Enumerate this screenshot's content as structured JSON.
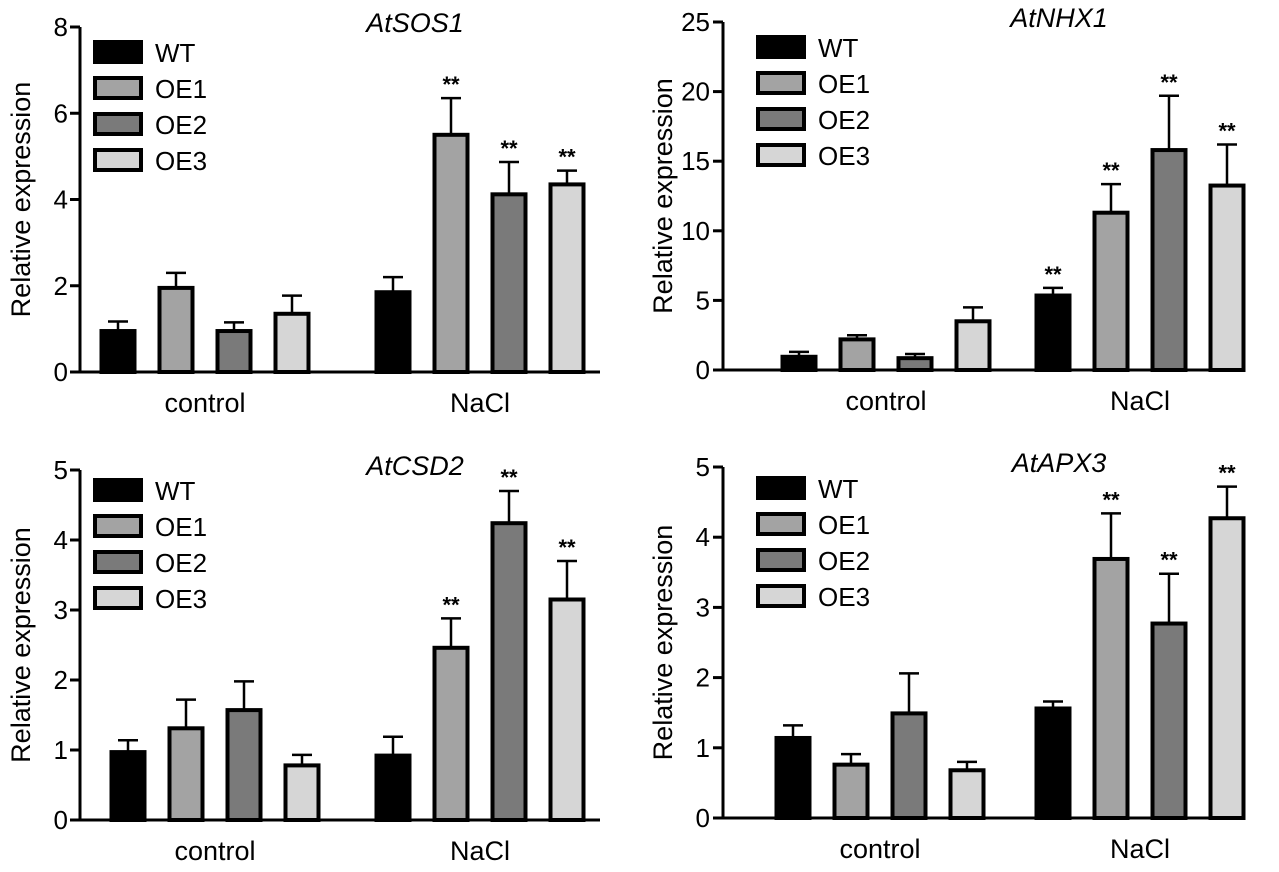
{
  "figure": {
    "groups": [
      "control",
      "NaCl"
    ],
    "legend": [
      "WT",
      "OE1",
      "OE2",
      "OE3"
    ],
    "colors": {
      "WT": "#000000",
      "OE1": "#a3a3a3",
      "OE2": "#7a7a7a",
      "OE3": "#d6d6d6",
      "axis": "#000000"
    }
  },
  "chart_data": [
    {
      "type": "bar",
      "title": "AtSOS1",
      "ylabel": "Relative expression",
      "xlabel": "",
      "categories": [
        "control",
        "NaCl"
      ],
      "ylim": [
        0,
        8
      ],
      "yticks": [
        "0",
        "2",
        "4",
        "6",
        "8"
      ],
      "legend_position": "top-left",
      "series": [
        {
          "name": "WT",
          "values": [
            0.95,
            1.85
          ],
          "errors": [
            0.22,
            0.35
          ],
          "sig": [
            "",
            ""
          ]
        },
        {
          "name": "OE1",
          "values": [
            1.95,
            5.5
          ],
          "errors": [
            0.35,
            0.85
          ],
          "sig": [
            "",
            "**"
          ]
        },
        {
          "name": "OE2",
          "values": [
            0.95,
            4.12
          ],
          "errors": [
            0.2,
            0.75
          ],
          "sig": [
            "",
            "**"
          ]
        },
        {
          "name": "OE3",
          "values": [
            1.35,
            4.35
          ],
          "errors": [
            0.42,
            0.32
          ],
          "sig": [
            "",
            "**"
          ]
        }
      ]
    },
    {
      "type": "bar",
      "title": "AtNHX1",
      "ylabel": "Relative expression",
      "xlabel": "",
      "categories": [
        "control",
        "NaCl"
      ],
      "ylim": [
        0,
        25
      ],
      "yticks": [
        "0",
        "5",
        "10",
        "15",
        "20",
        "25"
      ],
      "legend_position": "top-left",
      "series": [
        {
          "name": "WT",
          "values": [
            0.95,
            5.35
          ],
          "errors": [
            0.35,
            0.55
          ],
          "sig": [
            "",
            "**"
          ]
        },
        {
          "name": "OE1",
          "values": [
            2.2,
            11.3
          ],
          "errors": [
            0.3,
            2.05
          ],
          "sig": [
            "",
            "**"
          ]
        },
        {
          "name": "OE2",
          "values": [
            0.85,
            15.8
          ],
          "errors": [
            0.3,
            3.9
          ],
          "sig": [
            "",
            "**"
          ]
        },
        {
          "name": "OE3",
          "values": [
            3.5,
            13.25
          ],
          "errors": [
            1.0,
            2.95
          ],
          "sig": [
            "",
            "**"
          ]
        }
      ]
    },
    {
      "type": "bar",
      "title": "AtCSD2",
      "ylabel": "Relative expression",
      "xlabel": "",
      "categories": [
        "control",
        "NaCl"
      ],
      "ylim": [
        0,
        5
      ],
      "yticks": [
        "0",
        "1",
        "2",
        "3",
        "4",
        "5"
      ],
      "legend_position": "top-left",
      "series": [
        {
          "name": "WT",
          "values": [
            0.97,
            0.92
          ],
          "errors": [
            0.17,
            0.27
          ],
          "sig": [
            "",
            ""
          ]
        },
        {
          "name": "OE1",
          "values": [
            1.31,
            2.46
          ],
          "errors": [
            0.41,
            0.42
          ],
          "sig": [
            "",
            "**"
          ]
        },
        {
          "name": "OE2",
          "values": [
            1.57,
            4.24
          ],
          "errors": [
            0.41,
            0.46
          ],
          "sig": [
            "",
            "**"
          ]
        },
        {
          "name": "OE3",
          "values": [
            0.78,
            3.15
          ],
          "errors": [
            0.15,
            0.55
          ],
          "sig": [
            "",
            "**"
          ]
        }
      ]
    },
    {
      "type": "bar",
      "title": "AtAPX3",
      "ylabel": "Relative expression",
      "xlabel": "",
      "categories": [
        "control",
        "NaCl"
      ],
      "ylim": [
        0,
        5
      ],
      "yticks": [
        "0",
        "1",
        "2",
        "3",
        "4",
        "5"
      ],
      "legend_position": "top-left",
      "series": [
        {
          "name": "WT",
          "values": [
            1.14,
            1.56
          ],
          "errors": [
            0.18,
            0.1
          ],
          "sig": [
            "",
            ""
          ]
        },
        {
          "name": "OE1",
          "values": [
            0.76,
            3.69
          ],
          "errors": [
            0.15,
            0.65
          ],
          "sig": [
            "",
            "**"
          ]
        },
        {
          "name": "OE2",
          "values": [
            1.49,
            2.77
          ],
          "errors": [
            0.57,
            0.71
          ],
          "sig": [
            "",
            "**"
          ]
        },
        {
          "name": "OE3",
          "values": [
            0.68,
            4.27
          ],
          "errors": [
            0.12,
            0.45
          ],
          "sig": [
            "",
            "**"
          ]
        }
      ]
    }
  ]
}
